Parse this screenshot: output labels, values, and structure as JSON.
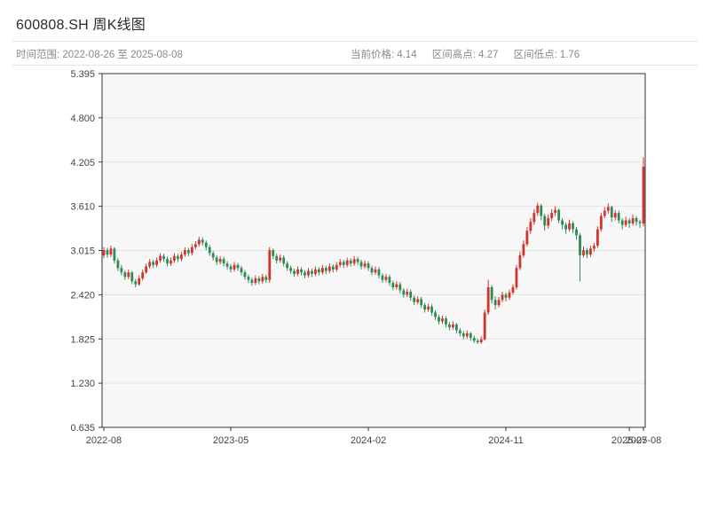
{
  "header": {
    "title": "600808.SH 周K线图",
    "range_text": "时间范围: 2022-08-26 至 2025-08-08",
    "info": {
      "items": [
        {
          "label": "当前价格:",
          "value": "4.14"
        },
        {
          "label": "区间高点:",
          "value": "4.27"
        },
        {
          "label": "区间低点:",
          "value": "1.76"
        }
      ]
    }
  },
  "chart_data": {
    "type": "candlestick",
    "title": "600808.SH 周K线图",
    "symbol": "600808.SH",
    "interval": "weekly",
    "start_date": "2022-08-26",
    "end_date": "2025-08-08",
    "current_price": 4.14,
    "range_high": 4.27,
    "range_low": 1.76,
    "ylim": [
      0.635,
      5.395
    ],
    "y_ticks": [
      "5.395",
      "4.800",
      "4.205",
      "3.610",
      "3.015",
      "2.420",
      "1.825",
      "1.230",
      "0.635"
    ],
    "x_ticks": [
      {
        "index": 0,
        "label": "2022-08"
      },
      {
        "index": 36,
        "label": "2023-05"
      },
      {
        "index": 75,
        "label": "2024-02"
      },
      {
        "index": 114,
        "label": "2024-11"
      },
      {
        "index": 149,
        "label": "2025-07"
      },
      {
        "index": 153,
        "label": "2025-08"
      }
    ],
    "grid": true,
    "up_color": "#d0342c",
    "down_color": "#2e8b57",
    "plot_bg": "#f7f7f7",
    "grid_color": "#e3e3e3",
    "axis_color": "#333333",
    "tick_label_color": "#444444",
    "candles": [
      [
        2.95,
        3.06,
        2.91,
        3.02
      ],
      [
        3.02,
        3.05,
        2.92,
        2.96
      ],
      [
        2.96,
        3.08,
        2.93,
        3.04
      ],
      [
        3.04,
        3.06,
        2.84,
        2.88
      ],
      [
        2.88,
        2.91,
        2.74,
        2.78
      ],
      [
        2.78,
        2.82,
        2.68,
        2.72
      ],
      [
        2.72,
        2.75,
        2.62,
        2.66
      ],
      [
        2.66,
        2.76,
        2.63,
        2.72
      ],
      [
        2.72,
        2.74,
        2.56,
        2.6
      ],
      [
        2.6,
        2.63,
        2.52,
        2.56
      ],
      [
        2.56,
        2.68,
        2.54,
        2.64
      ],
      [
        2.64,
        2.76,
        2.61,
        2.72
      ],
      [
        2.72,
        2.84,
        2.7,
        2.8
      ],
      [
        2.8,
        2.9,
        2.77,
        2.86
      ],
      [
        2.86,
        2.89,
        2.78,
        2.82
      ],
      [
        2.82,
        2.92,
        2.79,
        2.88
      ],
      [
        2.88,
        2.98,
        2.85,
        2.94
      ],
      [
        2.94,
        2.97,
        2.86,
        2.9
      ],
      [
        2.9,
        2.93,
        2.8,
        2.84
      ],
      [
        2.84,
        2.92,
        2.81,
        2.88
      ],
      [
        2.88,
        2.98,
        2.85,
        2.94
      ],
      [
        2.94,
        2.97,
        2.86,
        2.9
      ],
      [
        2.9,
        3.0,
        2.87,
        2.96
      ],
      [
        2.96,
        3.06,
        2.93,
        3.02
      ],
      [
        3.02,
        3.05,
        2.94,
        2.98
      ],
      [
        2.98,
        3.1,
        2.95,
        3.06
      ],
      [
        3.06,
        3.14,
        3.03,
        3.1
      ],
      [
        3.1,
        3.2,
        3.07,
        3.16
      ],
      [
        3.16,
        3.19,
        3.08,
        3.12
      ],
      [
        3.12,
        3.15,
        3.02,
        3.06
      ],
      [
        3.06,
        3.09,
        2.94,
        2.98
      ],
      [
        2.98,
        3.01,
        2.88,
        2.92
      ],
      [
        2.92,
        2.95,
        2.82,
        2.86
      ],
      [
        2.86,
        2.94,
        2.83,
        2.9
      ],
      [
        2.9,
        2.93,
        2.8,
        2.84
      ],
      [
        2.84,
        2.87,
        2.76,
        2.8
      ],
      [
        2.8,
        2.83,
        2.72,
        2.76
      ],
      [
        2.76,
        2.86,
        2.73,
        2.82
      ],
      [
        2.82,
        2.85,
        2.74,
        2.78
      ],
      [
        2.78,
        2.81,
        2.68,
        2.72
      ],
      [
        2.72,
        2.75,
        2.62,
        2.66
      ],
      [
        2.66,
        2.69,
        2.58,
        2.62
      ],
      [
        2.62,
        2.65,
        2.54,
        2.58
      ],
      [
        2.58,
        2.68,
        2.55,
        2.64
      ],
      [
        2.64,
        2.67,
        2.56,
        2.6
      ],
      [
        2.6,
        2.7,
        2.57,
        2.66
      ],
      [
        2.66,
        2.69,
        2.58,
        2.62
      ],
      [
        2.62,
        3.06,
        2.58,
        3.02
      ],
      [
        3.02,
        3.04,
        2.9,
        2.94
      ],
      [
        2.94,
        2.97,
        2.84,
        2.88
      ],
      [
        2.88,
        2.96,
        2.85,
        2.92
      ],
      [
        2.92,
        2.95,
        2.8,
        2.84
      ],
      [
        2.84,
        2.87,
        2.74,
        2.78
      ],
      [
        2.78,
        2.81,
        2.7,
        2.74
      ],
      [
        2.74,
        2.77,
        2.66,
        2.7
      ],
      [
        2.7,
        2.8,
        2.67,
        2.76
      ],
      [
        2.76,
        2.79,
        2.68,
        2.72
      ],
      [
        2.72,
        2.75,
        2.64,
        2.68
      ],
      [
        2.68,
        2.78,
        2.65,
        2.74
      ],
      [
        2.74,
        2.77,
        2.66,
        2.7
      ],
      [
        2.7,
        2.8,
        2.67,
        2.76
      ],
      [
        2.76,
        2.79,
        2.68,
        2.72
      ],
      [
        2.72,
        2.82,
        2.69,
        2.78
      ],
      [
        2.78,
        2.81,
        2.7,
        2.74
      ],
      [
        2.74,
        2.84,
        2.71,
        2.8
      ],
      [
        2.8,
        2.83,
        2.72,
        2.76
      ],
      [
        2.76,
        2.86,
        2.73,
        2.82
      ],
      [
        2.82,
        2.9,
        2.79,
        2.86
      ],
      [
        2.86,
        2.89,
        2.78,
        2.82
      ],
      [
        2.82,
        2.92,
        2.79,
        2.88
      ],
      [
        2.88,
        2.91,
        2.8,
        2.84
      ],
      [
        2.84,
        2.94,
        2.81,
        2.9
      ],
      [
        2.9,
        2.93,
        2.82,
        2.86
      ],
      [
        2.86,
        2.89,
        2.76,
        2.8
      ],
      [
        2.8,
        2.88,
        2.77,
        2.84
      ],
      [
        2.84,
        2.87,
        2.74,
        2.78
      ],
      [
        2.78,
        2.81,
        2.68,
        2.72
      ],
      [
        2.72,
        2.8,
        2.69,
        2.76
      ],
      [
        2.76,
        2.79,
        2.64,
        2.68
      ],
      [
        2.68,
        2.71,
        2.58,
        2.62
      ],
      [
        2.62,
        2.7,
        2.59,
        2.66
      ],
      [
        2.66,
        2.69,
        2.54,
        2.58
      ],
      [
        2.58,
        2.61,
        2.48,
        2.52
      ],
      [
        2.52,
        2.6,
        2.49,
        2.56
      ],
      [
        2.56,
        2.59,
        2.44,
        2.48
      ],
      [
        2.48,
        2.51,
        2.38,
        2.42
      ],
      [
        2.42,
        2.5,
        2.39,
        2.46
      ],
      [
        2.46,
        2.49,
        2.34,
        2.38
      ],
      [
        2.38,
        2.41,
        2.28,
        2.32
      ],
      [
        2.32,
        2.4,
        2.29,
        2.36
      ],
      [
        2.36,
        2.39,
        2.24,
        2.28
      ],
      [
        2.28,
        2.31,
        2.18,
        2.22
      ],
      [
        2.22,
        2.3,
        2.19,
        2.26
      ],
      [
        2.26,
        2.29,
        2.14,
        2.18
      ],
      [
        2.18,
        2.21,
        2.08,
        2.12
      ],
      [
        2.12,
        2.15,
        2.02,
        2.06
      ],
      [
        2.06,
        2.14,
        2.03,
        2.1
      ],
      [
        2.1,
        2.13,
        1.98,
        2.02
      ],
      [
        2.02,
        2.05,
        1.94,
        1.98
      ],
      [
        1.98,
        2.06,
        1.95,
        2.02
      ],
      [
        2.02,
        2.04,
        1.9,
        1.94
      ],
      [
        1.94,
        1.97,
        1.86,
        1.9
      ],
      [
        1.9,
        1.93,
        1.82,
        1.86
      ],
      [
        1.86,
        1.94,
        1.83,
        1.9
      ],
      [
        1.9,
        1.92,
        1.8,
        1.84
      ],
      [
        1.84,
        1.87,
        1.77,
        1.8
      ],
      [
        1.8,
        1.83,
        1.76,
        1.78
      ],
      [
        1.78,
        1.86,
        1.76,
        1.82
      ],
      [
        1.82,
        2.22,
        1.8,
        2.18
      ],
      [
        2.18,
        2.62,
        2.15,
        2.52
      ],
      [
        2.52,
        2.55,
        2.3,
        2.35
      ],
      [
        2.35,
        2.4,
        2.22,
        2.28
      ],
      [
        2.28,
        2.39,
        2.25,
        2.35
      ],
      [
        2.35,
        2.46,
        2.32,
        2.42
      ],
      [
        2.42,
        2.45,
        2.33,
        2.38
      ],
      [
        2.38,
        2.49,
        2.35,
        2.45
      ],
      [
        2.45,
        2.56,
        2.42,
        2.52
      ],
      [
        2.52,
        2.82,
        2.49,
        2.78
      ],
      [
        2.78,
        3.0,
        2.75,
        2.95
      ],
      [
        2.95,
        3.15,
        2.92,
        3.1
      ],
      [
        3.1,
        3.33,
        3.07,
        3.28
      ],
      [
        3.28,
        3.45,
        3.24,
        3.4
      ],
      [
        3.4,
        3.57,
        3.36,
        3.52
      ],
      [
        3.52,
        3.66,
        3.48,
        3.62
      ],
      [
        3.62,
        3.64,
        3.42,
        3.48
      ],
      [
        3.48,
        3.51,
        3.28,
        3.35
      ],
      [
        3.35,
        3.5,
        3.31,
        3.45
      ],
      [
        3.45,
        3.57,
        3.41,
        3.52
      ],
      [
        3.52,
        3.61,
        3.48,
        3.56
      ],
      [
        3.56,
        3.58,
        3.38,
        3.42
      ],
      [
        3.42,
        3.45,
        3.3,
        3.36
      ],
      [
        3.36,
        3.39,
        3.24,
        3.3
      ],
      [
        3.3,
        3.43,
        3.27,
        3.38
      ],
      [
        3.38,
        3.41,
        3.25,
        3.3
      ],
      [
        3.3,
        3.33,
        3.16,
        3.22
      ],
      [
        3.22,
        3.25,
        2.6,
        2.95
      ],
      [
        2.95,
        3.07,
        2.92,
        3.02
      ],
      [
        3.02,
        3.05,
        2.91,
        2.96
      ],
      [
        2.96,
        3.08,
        2.93,
        3.04
      ],
      [
        3.04,
        3.12,
        3.0,
        3.08
      ],
      [
        3.08,
        3.34,
        3.05,
        3.3
      ],
      [
        3.3,
        3.52,
        3.27,
        3.48
      ],
      [
        3.48,
        3.6,
        3.45,
        3.55
      ],
      [
        3.55,
        3.65,
        3.51,
        3.6
      ],
      [
        3.6,
        3.62,
        3.4,
        3.46
      ],
      [
        3.46,
        3.56,
        3.42,
        3.52
      ],
      [
        3.52,
        3.55,
        3.38,
        3.42
      ],
      [
        3.42,
        3.45,
        3.3,
        3.36
      ],
      [
        3.36,
        3.47,
        3.33,
        3.42
      ],
      [
        3.42,
        3.45,
        3.32,
        3.38
      ],
      [
        3.38,
        3.5,
        3.35,
        3.45
      ],
      [
        3.45,
        3.48,
        3.35,
        3.4
      ],
      [
        3.4,
        3.43,
        3.32,
        3.38
      ],
      [
        3.38,
        4.27,
        3.34,
        4.14
      ]
    ]
  }
}
